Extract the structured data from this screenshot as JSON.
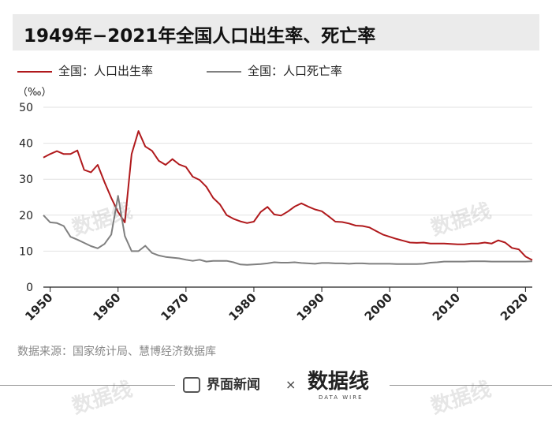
{
  "title": "1949年−2021年全国人口出生率、死亡率",
  "legend": {
    "birth_label": "全国：人口出生率",
    "death_label": "全国：人口死亡率"
  },
  "colors": {
    "birth": "#b0191c",
    "death": "#808080",
    "grid": "#e2e2e2",
    "axis": "#222222"
  },
  "source": "数据来源：国家统计局、慧博经济数据库",
  "footer": {
    "brand_left": "界面新闻",
    "separator": "×",
    "brand_right_logo": "数据线",
    "brand_right_sub": "DATA WIRE"
  },
  "watermark_text": "数据线",
  "chart_data": {
    "type": "line",
    "unit_label": "（‰）",
    "xlim": [
      1949,
      2021
    ],
    "ylim": [
      0,
      50
    ],
    "yticks": [
      0,
      10,
      20,
      30,
      40,
      50
    ],
    "xticks": [
      1950,
      1960,
      1970,
      1980,
      1990,
      2000,
      2010,
      2020
    ],
    "x": [
      1949,
      1950,
      1951,
      1952,
      1953,
      1954,
      1955,
      1956,
      1957,
      1958,
      1959,
      1960,
      1961,
      1962,
      1963,
      1964,
      1965,
      1966,
      1967,
      1968,
      1969,
      1970,
      1971,
      1972,
      1973,
      1974,
      1975,
      1976,
      1977,
      1978,
      1979,
      1980,
      1981,
      1982,
      1983,
      1984,
      1985,
      1986,
      1987,
      1988,
      1989,
      1990,
      1991,
      1992,
      1993,
      1994,
      1995,
      1996,
      1997,
      1998,
      1999,
      2000,
      2001,
      2002,
      2003,
      2004,
      2005,
      2006,
      2007,
      2008,
      2009,
      2010,
      2011,
      2012,
      2013,
      2014,
      2015,
      2016,
      2017,
      2018,
      2019,
      2020,
      2021
    ],
    "series": [
      {
        "name": "全国：人口出生率",
        "color": "#b0191c",
        "values": [
          36.0,
          37.0,
          37.8,
          37.0,
          37.0,
          38.0,
          32.6,
          31.9,
          34.0,
          29.2,
          24.8,
          20.9,
          18.0,
          37.0,
          43.4,
          39.1,
          37.9,
          35.1,
          34.0,
          35.6,
          34.1,
          33.4,
          30.7,
          29.8,
          27.9,
          24.8,
          23.0,
          20.0,
          19.0,
          18.3,
          17.8,
          18.2,
          20.9,
          22.3,
          20.2,
          19.9,
          21.0,
          22.4,
          23.3,
          22.4,
          21.6,
          21.1,
          19.7,
          18.2,
          18.1,
          17.7,
          17.1,
          17.0,
          16.6,
          15.6,
          14.6,
          14.0,
          13.4,
          12.9,
          12.4,
          12.3,
          12.4,
          12.1,
          12.1,
          12.1,
          12.0,
          11.9,
          11.9,
          12.1,
          12.1,
          12.4,
          12.1,
          13.0,
          12.4,
          10.9,
          10.5,
          8.5,
          7.5
        ]
      },
      {
        "name": "全国：人口死亡率",
        "color": "#808080",
        "values": [
          20.0,
          18.0,
          17.8,
          17.0,
          14.0,
          13.2,
          12.3,
          11.4,
          10.8,
          12.0,
          14.6,
          25.4,
          14.2,
          10.0,
          10.0,
          11.5,
          9.5,
          8.8,
          8.4,
          8.2,
          8.0,
          7.6,
          7.3,
          7.6,
          7.1,
          7.3,
          7.3,
          7.3,
          6.9,
          6.3,
          6.2,
          6.3,
          6.4,
          6.6,
          6.9,
          6.8,
          6.8,
          6.9,
          6.7,
          6.6,
          6.5,
          6.7,
          6.7,
          6.6,
          6.6,
          6.5,
          6.6,
          6.6,
          6.5,
          6.5,
          6.5,
          6.5,
          6.4,
          6.4,
          6.4,
          6.4,
          6.5,
          6.8,
          6.9,
          7.1,
          7.1,
          7.1,
          7.1,
          7.2,
          7.2,
          7.2,
          7.1,
          7.1,
          7.1,
          7.1,
          7.1,
          7.1,
          7.2
        ]
      }
    ]
  }
}
